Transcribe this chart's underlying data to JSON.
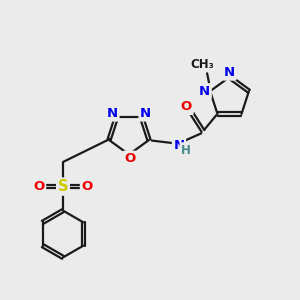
{
  "bg_color": "#ebebeb",
  "bond_color": "#1a1a1a",
  "bond_width": 1.6,
  "atom_colors": {
    "N": "#0000ee",
    "O": "#ee0000",
    "S": "#cccc00",
    "H": "#4a8a8a",
    "C": "#1a1a1a"
  },
  "font_size": 9.5,
  "fig_width": 3.0,
  "fig_height": 3.0,
  "dpi": 100
}
